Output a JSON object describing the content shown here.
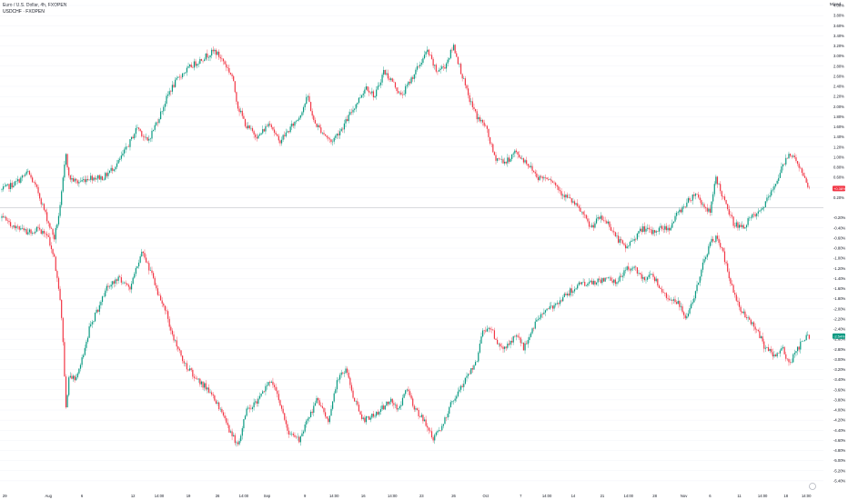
{
  "legend": {
    "main": "Euro / U.S. Dollar, 4h, FXOPEN",
    "compare": "USDCHF · FXOPEN"
  },
  "scale_mode": "Mixed",
  "colors": {
    "up": "#089981",
    "down": "#f23645",
    "grid": "#f0f3fa",
    "axis_text": "#131722",
    "zero_line": "#b2b5be",
    "badge_main": "#f23645",
    "badge_compare": "#089981"
  },
  "chart_data": {
    "type": "line",
    "title": "",
    "xlabel": "",
    "ylabel": "",
    "y_unit": "%",
    "ylim": [
      -5.6,
      4.0
    ],
    "y_ticks": [
      "4.00%",
      "3.80%",
      "3.60%",
      "3.40%",
      "3.20%",
      "3.00%",
      "2.80%",
      "2.60%",
      "2.40%",
      "2.20%",
      "2.00%",
      "1.80%",
      "1.60%",
      "1.40%",
      "1.20%",
      "1.00%",
      "0.80%",
      "0.60%",
      "0.40%",
      "0.20%",
      "-0.20%",
      "-0.40%",
      "-0.60%",
      "-0.80%",
      "-1.00%",
      "-1.20%",
      "-1.40%",
      "-1.60%",
      "-1.80%",
      "-2.00%",
      "-2.20%",
      "-2.40%",
      "-2.60%",
      "-2.80%",
      "-3.00%",
      "-3.20%",
      "-3.40%",
      "-3.60%",
      "-3.80%",
      "-4.00%",
      "-4.20%",
      "-4.40%",
      "-4.60%",
      "-4.80%",
      "-5.00%",
      "-5.20%",
      "-5.40%"
    ],
    "y_tick_values": [
      4.0,
      3.8,
      3.6,
      3.4,
      3.2,
      3.0,
      2.8,
      2.6,
      2.4,
      2.2,
      2.0,
      1.8,
      1.6,
      1.4,
      1.2,
      1.0,
      0.8,
      0.6,
      0.4,
      0.2,
      -0.2,
      -0.4,
      -0.6,
      -0.8,
      -1.0,
      -1.2,
      -1.4,
      -1.6,
      -1.8,
      -2.0,
      -2.2,
      -2.4,
      -2.6,
      -2.8,
      -3.0,
      -3.2,
      -3.4,
      -3.6,
      -3.8,
      -4.0,
      -4.2,
      -4.4,
      -4.6,
      -4.8,
      -5.0,
      -5.2,
      -5.4
    ],
    "x_ticks": [
      "29",
      "Aug",
      "6",
      "12",
      "14:00",
      "19",
      "26",
      "14:00",
      "Sep",
      "9",
      "14:00",
      "16",
      "14:00",
      "23",
      "26",
      "Oct",
      "7",
      "14:00",
      "14",
      "21",
      "14:00",
      "28",
      "Nov",
      "6",
      "11",
      "14:00",
      "18",
      "14:00"
    ],
    "x_tick_index": [
      2,
      32,
      55,
      90,
      108,
      128,
      148,
      166,
      182,
      208,
      228,
      248,
      268,
      288,
      310,
      332,
      356,
      374,
      392,
      412,
      430,
      448,
      468,
      486,
      506,
      522,
      538,
      552
    ],
    "bars_total": 560,
    "series": [
      {
        "name": "Euro / U.S. Dollar",
        "style": "candles",
        "last_label": "+0.38%",
        "anchors": [
          [
            0,
            0.35
          ],
          [
            10,
            0.5
          ],
          [
            18,
            0.7
          ],
          [
            25,
            0.3
          ],
          [
            32,
            -0.3
          ],
          [
            36,
            -0.6
          ],
          [
            40,
            0.0
          ],
          [
            44,
            1.1
          ],
          [
            46,
            0.6
          ],
          [
            52,
            0.5
          ],
          [
            60,
            0.6
          ],
          [
            70,
            0.6
          ],
          [
            80,
            0.9
          ],
          [
            88,
            1.3
          ],
          [
            93,
            1.6
          ],
          [
            100,
            1.3
          ],
          [
            108,
            1.8
          ],
          [
            115,
            2.3
          ],
          [
            122,
            2.6
          ],
          [
            130,
            2.8
          ],
          [
            140,
            3.0
          ],
          [
            146,
            3.1
          ],
          [
            152,
            2.9
          ],
          [
            158,
            2.6
          ],
          [
            162,
            2.0
          ],
          [
            168,
            1.6
          ],
          [
            176,
            1.4
          ],
          [
            184,
            1.7
          ],
          [
            190,
            1.3
          ],
          [
            196,
            1.5
          ],
          [
            204,
            1.8
          ],
          [
            210,
            2.2
          ],
          [
            214,
            1.7
          ],
          [
            220,
            1.5
          ],
          [
            226,
            1.3
          ],
          [
            234,
            1.6
          ],
          [
            242,
            2.0
          ],
          [
            250,
            2.4
          ],
          [
            256,
            2.2
          ],
          [
            262,
            2.7
          ],
          [
            268,
            2.5
          ],
          [
            274,
            2.2
          ],
          [
            280,
            2.5
          ],
          [
            286,
            2.8
          ],
          [
            292,
            3.1
          ],
          [
            298,
            2.7
          ],
          [
            304,
            2.8
          ],
          [
            310,
            3.2
          ],
          [
            316,
            2.6
          ],
          [
            320,
            2.2
          ],
          [
            326,
            1.8
          ],
          [
            332,
            1.6
          ],
          [
            338,
            1.0
          ],
          [
            346,
            0.9
          ],
          [
            352,
            1.1
          ],
          [
            360,
            0.9
          ],
          [
            368,
            0.6
          ],
          [
            376,
            0.6
          ],
          [
            384,
            0.3
          ],
          [
            392,
            0.1
          ],
          [
            398,
            -0.1
          ],
          [
            404,
            -0.4
          ],
          [
            410,
            -0.2
          ],
          [
            416,
            -0.3
          ],
          [
            422,
            -0.6
          ],
          [
            428,
            -0.8
          ],
          [
            434,
            -0.6
          ],
          [
            440,
            -0.4
          ],
          [
            446,
            -0.5
          ],
          [
            452,
            -0.4
          ],
          [
            458,
            -0.4
          ],
          [
            464,
            -0.1
          ],
          [
            470,
            0.1
          ],
          [
            476,
            0.3
          ],
          [
            480,
            0.1
          ],
          [
            486,
            -0.1
          ],
          [
            490,
            0.6
          ],
          [
            496,
            0.1
          ],
          [
            502,
            -0.3
          ],
          [
            508,
            -0.4
          ],
          [
            514,
            -0.2
          ],
          [
            520,
            -0.1
          ],
          [
            528,
            0.3
          ],
          [
            534,
            0.7
          ],
          [
            540,
            1.1
          ],
          [
            546,
            0.9
          ],
          [
            550,
            0.6
          ],
          [
            554,
            0.38
          ]
        ]
      },
      {
        "name": "USDCHF",
        "style": "candles",
        "last_label": "-2.54%",
        "anchors": [
          [
            0,
            -0.2
          ],
          [
            10,
            -0.4
          ],
          [
            18,
            -0.5
          ],
          [
            25,
            -0.4
          ],
          [
            32,
            -0.6
          ],
          [
            36,
            -1.0
          ],
          [
            40,
            -1.8
          ],
          [
            42,
            -2.6
          ],
          [
            44,
            -4.0
          ],
          [
            46,
            -3.3
          ],
          [
            50,
            -3.4
          ],
          [
            55,
            -3.0
          ],
          [
            60,
            -2.4
          ],
          [
            66,
            -2.0
          ],
          [
            72,
            -1.6
          ],
          [
            80,
            -1.4
          ],
          [
            88,
            -1.6
          ],
          [
            92,
            -1.2
          ],
          [
            96,
            -0.9
          ],
          [
            100,
            -1.1
          ],
          [
            106,
            -1.6
          ],
          [
            112,
            -2.0
          ],
          [
            118,
            -2.6
          ],
          [
            126,
            -3.1
          ],
          [
            134,
            -3.4
          ],
          [
            142,
            -3.6
          ],
          [
            150,
            -4.0
          ],
          [
            156,
            -4.4
          ],
          [
            162,
            -4.7
          ],
          [
            168,
            -4.0
          ],
          [
            176,
            -3.8
          ],
          [
            184,
            -3.4
          ],
          [
            190,
            -3.8
          ],
          [
            196,
            -4.4
          ],
          [
            204,
            -4.6
          ],
          [
            210,
            -4.2
          ],
          [
            216,
            -3.8
          ],
          [
            224,
            -4.2
          ],
          [
            230,
            -3.4
          ],
          [
            236,
            -3.2
          ],
          [
            242,
            -3.8
          ],
          [
            248,
            -4.2
          ],
          [
            254,
            -4.1
          ],
          [
            260,
            -4.0
          ],
          [
            266,
            -3.8
          ],
          [
            272,
            -4.0
          ],
          [
            278,
            -3.6
          ],
          [
            284,
            -4.0
          ],
          [
            290,
            -4.2
          ],
          [
            296,
            -4.6
          ],
          [
            302,
            -4.3
          ],
          [
            308,
            -3.9
          ],
          [
            314,
            -3.6
          ],
          [
            320,
            -3.3
          ],
          [
            326,
            -3.0
          ],
          [
            330,
            -2.4
          ],
          [
            336,
            -2.4
          ],
          [
            342,
            -2.8
          ],
          [
            348,
            -2.7
          ],
          [
            354,
            -2.5
          ],
          [
            358,
            -2.8
          ],
          [
            364,
            -2.4
          ],
          [
            370,
            -2.1
          ],
          [
            376,
            -2.0
          ],
          [
            384,
            -1.8
          ],
          [
            392,
            -1.6
          ],
          [
            398,
            -1.5
          ],
          [
            406,
            -1.5
          ],
          [
            414,
            -1.4
          ],
          [
            422,
            -1.5
          ],
          [
            428,
            -1.2
          ],
          [
            434,
            -1.2
          ],
          [
            440,
            -1.4
          ],
          [
            446,
            -1.3
          ],
          [
            452,
            -1.6
          ],
          [
            458,
            -1.8
          ],
          [
            464,
            -1.9
          ],
          [
            470,
            -2.2
          ],
          [
            476,
            -1.7
          ],
          [
            480,
            -1.2
          ],
          [
            486,
            -0.7
          ],
          [
            490,
            -0.6
          ],
          [
            494,
            -0.8
          ],
          [
            500,
            -1.5
          ],
          [
            506,
            -2.0
          ],
          [
            512,
            -2.2
          ],
          [
            518,
            -2.4
          ],
          [
            524,
            -2.8
          ],
          [
            530,
            -2.9
          ],
          [
            536,
            -2.8
          ],
          [
            540,
            -3.1
          ],
          [
            546,
            -2.8
          ],
          [
            550,
            -2.6
          ],
          [
            554,
            -2.54
          ]
        ]
      }
    ]
  }
}
